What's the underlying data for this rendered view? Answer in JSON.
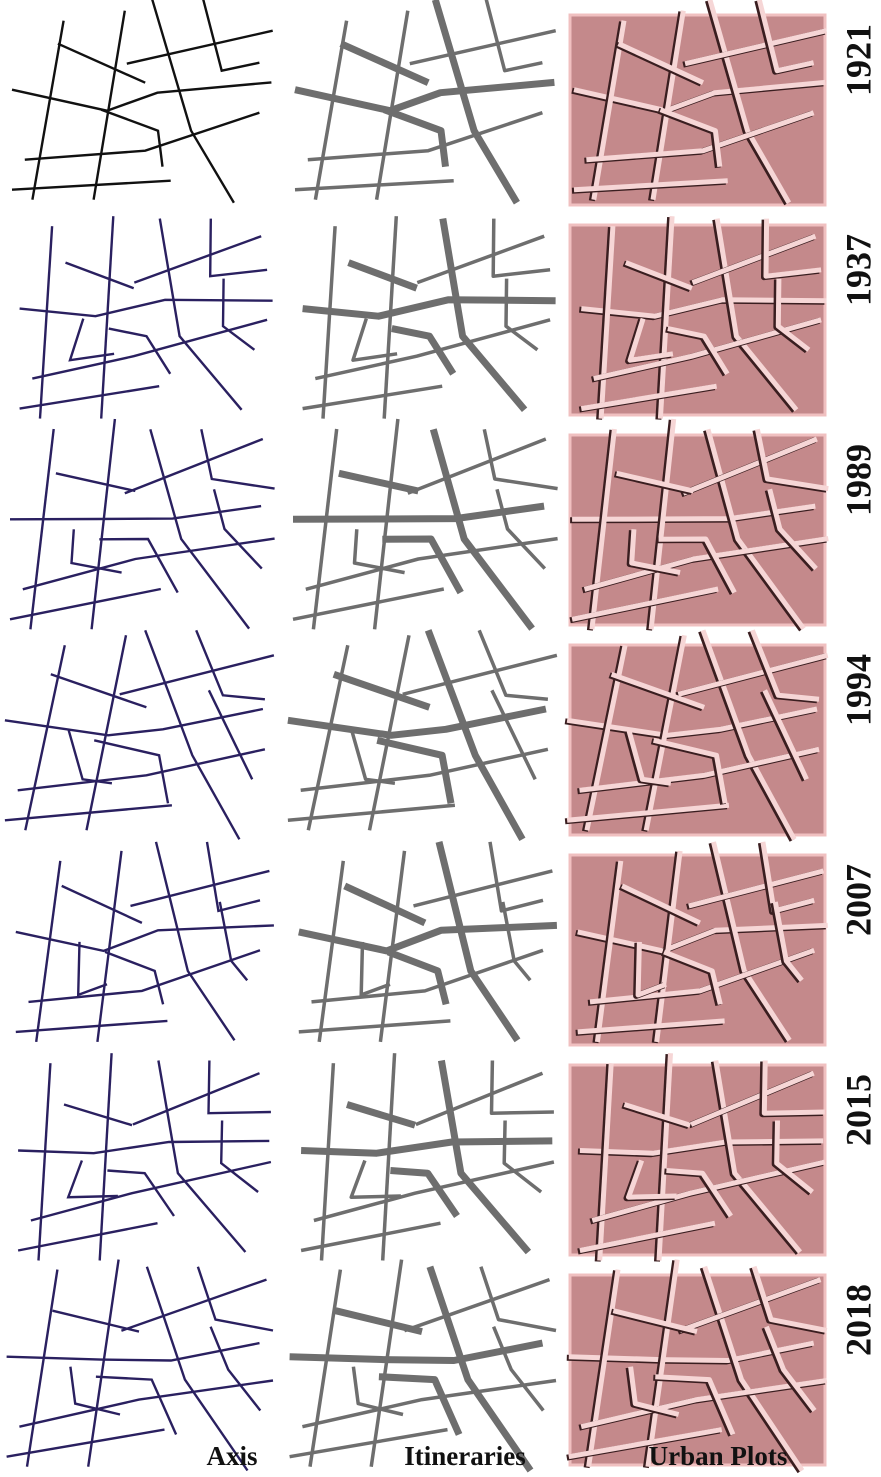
{
  "columns": [
    "Axis",
    "Itineraries",
    "Urban Plots"
  ],
  "years": [
    "1921",
    "1937",
    "1989",
    "1994",
    "2007",
    "2015",
    "2018"
  ]
}
